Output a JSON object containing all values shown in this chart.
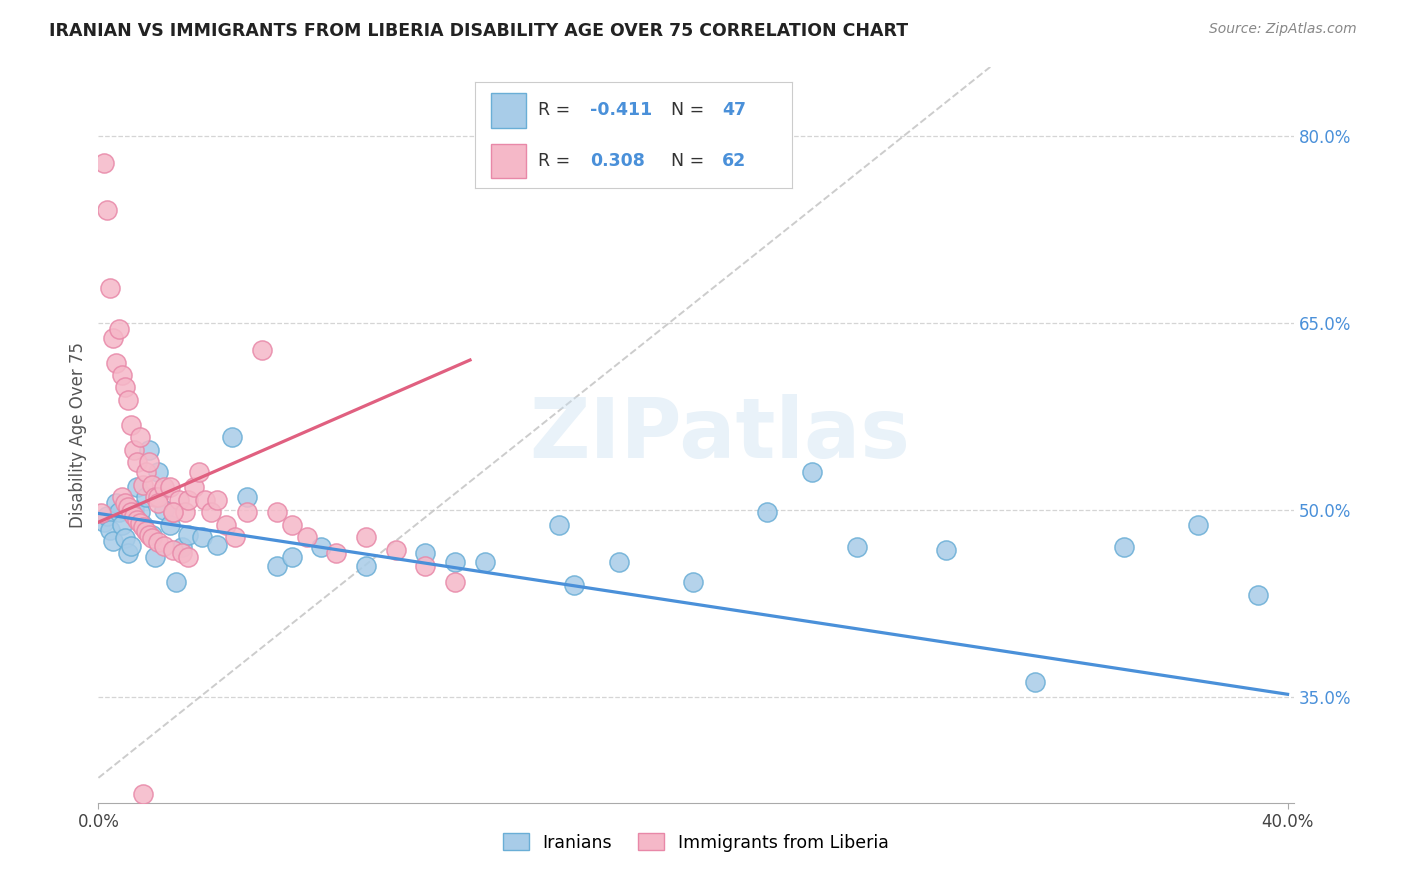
{
  "title": "IRANIAN VS IMMIGRANTS FROM LIBERIA DISABILITY AGE OVER 75 CORRELATION CHART",
  "source": "Source: ZipAtlas.com",
  "ylabel": "Disability Age Over 75",
  "xmin": 0.0,
  "xmax": 0.4,
  "ymin": 0.265,
  "ymax": 0.855,
  "ytick_vals": [
    0.35,
    0.5,
    0.65,
    0.8
  ],
  "r_iranian": -0.411,
  "n_iranian": 47,
  "r_liberia": 0.308,
  "n_liberia": 62,
  "watermark": "ZIPatlas",
  "blue_scatter_fc": "#a8cce8",
  "blue_scatter_ec": "#6aaed6",
  "blue_line": "#4a90d9",
  "pink_scatter_fc": "#f5b8c8",
  "pink_scatter_ec": "#e888a8",
  "pink_line": "#e06080",
  "gray_dash": "#c0c0c0",
  "iranians_x": [
    0.002,
    0.003,
    0.004,
    0.005,
    0.006,
    0.007,
    0.008,
    0.009,
    0.01,
    0.011,
    0.012,
    0.013,
    0.014,
    0.015,
    0.016,
    0.017,
    0.018,
    0.019,
    0.02,
    0.022,
    0.024,
    0.026,
    0.028,
    0.03,
    0.035,
    0.04,
    0.05,
    0.06,
    0.075,
    0.09,
    0.11,
    0.13,
    0.155,
    0.175,
    0.2,
    0.225,
    0.255,
    0.285,
    0.315,
    0.345,
    0.37,
    0.39,
    0.045,
    0.065,
    0.12,
    0.16,
    0.24
  ],
  "iranians_y": [
    0.49,
    0.495,
    0.484,
    0.475,
    0.505,
    0.498,
    0.488,
    0.477,
    0.465,
    0.471,
    0.5,
    0.518,
    0.498,
    0.488,
    0.51,
    0.548,
    0.48,
    0.462,
    0.53,
    0.5,
    0.488,
    0.442,
    0.47,
    0.48,
    0.478,
    0.472,
    0.51,
    0.455,
    0.47,
    0.455,
    0.465,
    0.458,
    0.488,
    0.458,
    0.442,
    0.498,
    0.47,
    0.468,
    0.362,
    0.47,
    0.488,
    0.432,
    0.558,
    0.462,
    0.458,
    0.44,
    0.53
  ],
  "liberia_x": [
    0.001,
    0.002,
    0.003,
    0.004,
    0.005,
    0.006,
    0.007,
    0.008,
    0.009,
    0.01,
    0.011,
    0.012,
    0.013,
    0.014,
    0.015,
    0.016,
    0.017,
    0.018,
    0.019,
    0.02,
    0.022,
    0.024,
    0.025,
    0.027,
    0.029,
    0.03,
    0.032,
    0.034,
    0.036,
    0.038,
    0.04,
    0.043,
    0.046,
    0.05,
    0.055,
    0.06,
    0.065,
    0.07,
    0.08,
    0.09,
    0.1,
    0.11,
    0.12,
    0.008,
    0.009,
    0.01,
    0.011,
    0.012,
    0.013,
    0.014,
    0.015,
    0.016,
    0.017,
    0.018,
    0.02,
    0.022,
    0.025,
    0.028,
    0.03,
    0.015,
    0.02,
    0.025
  ],
  "liberia_y": [
    0.497,
    0.778,
    0.74,
    0.678,
    0.638,
    0.618,
    0.645,
    0.608,
    0.598,
    0.588,
    0.568,
    0.548,
    0.538,
    0.558,
    0.52,
    0.53,
    0.538,
    0.52,
    0.51,
    0.51,
    0.518,
    0.518,
    0.498,
    0.508,
    0.498,
    0.508,
    0.518,
    0.53,
    0.508,
    0.498,
    0.508,
    0.488,
    0.478,
    0.498,
    0.628,
    0.498,
    0.488,
    0.478,
    0.465,
    0.478,
    0.468,
    0.455,
    0.442,
    0.51,
    0.505,
    0.502,
    0.498,
    0.495,
    0.492,
    0.489,
    0.486,
    0.483,
    0.48,
    0.477,
    0.474,
    0.471,
    0.468,
    0.465,
    0.462,
    0.272,
    0.505,
    0.498
  ],
  "pink_line_x0": 0.0,
  "pink_line_x1": 0.125,
  "pink_line_y0": 0.49,
  "pink_line_y1": 0.62,
  "blue_line_x0": 0.0,
  "blue_line_x1": 0.4,
  "blue_line_y0": 0.497,
  "blue_line_y1": 0.352
}
